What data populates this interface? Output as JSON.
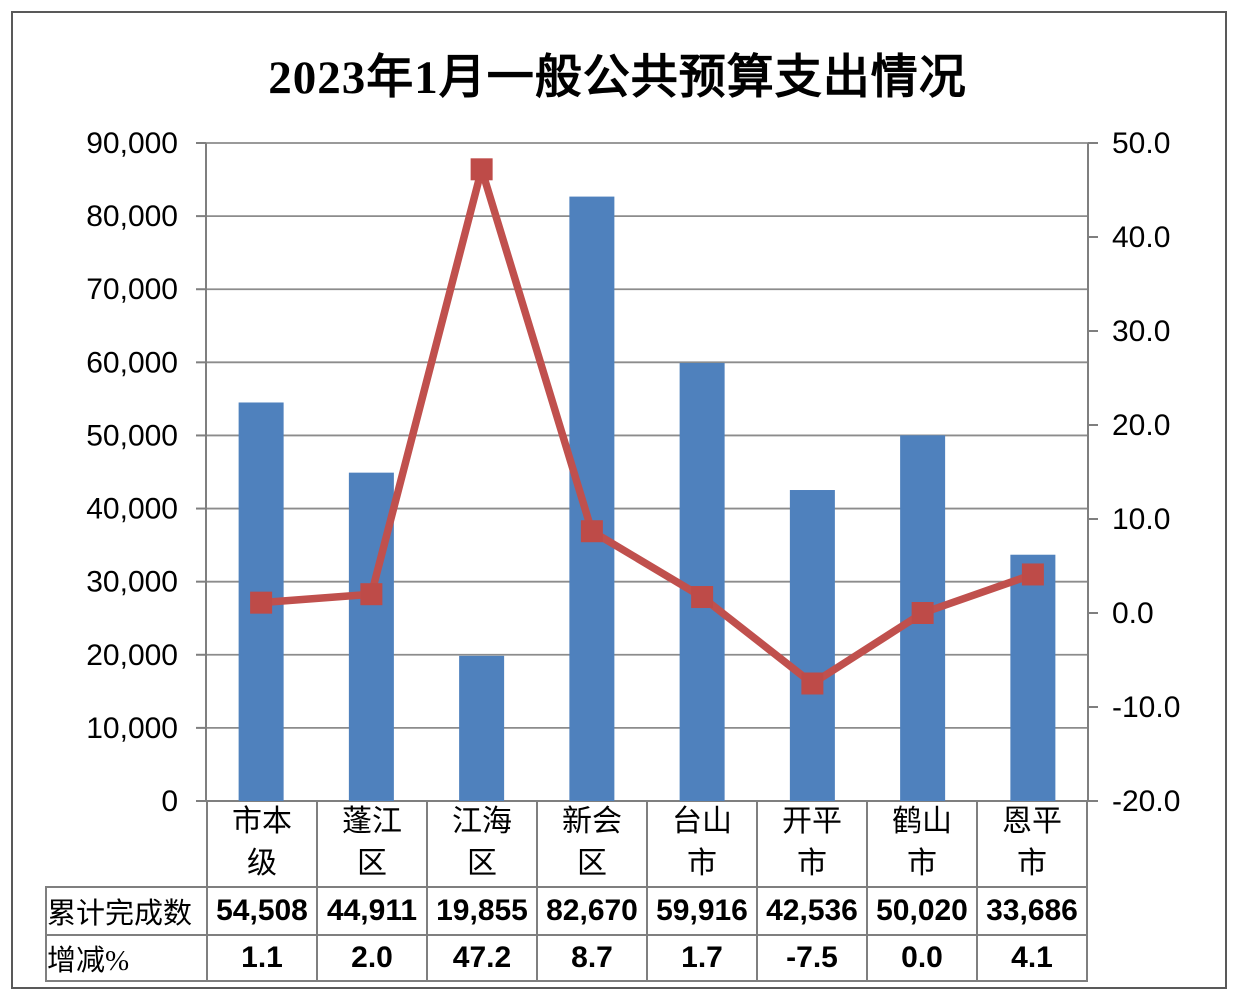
{
  "title": "2023年1月一般公共预算支出情况",
  "chart_data": {
    "type": "bar+line",
    "title": "2023年1月一般公共预算支出情况",
    "categories": [
      "市本级",
      "蓬江区",
      "江海区",
      "新会区",
      "台山市",
      "开平市",
      "鹤山市",
      "恩平市"
    ],
    "categories_wrapped": [
      "市本\n级",
      "蓬江\n区",
      "江海\n区",
      "新会\n区",
      "台山\n市",
      "开平\n市",
      "鹤山\n市",
      "恩平\n市"
    ],
    "series": [
      {
        "name": "累计完成数",
        "type": "bar",
        "axis": "left",
        "values": [
          54508,
          44911,
          19855,
          82670,
          59916,
          42536,
          50020,
          33686
        ]
      },
      {
        "name": "增减%",
        "type": "line",
        "axis": "right",
        "marker": "square",
        "values": [
          1.1,
          2.0,
          47.2,
          8.7,
          1.7,
          -7.5,
          0.0,
          4.1
        ]
      }
    ],
    "left_axis": {
      "min": 0,
      "max": 90000,
      "step": 10000,
      "tick_labels": [
        "0",
        "10,000",
        "20,000",
        "30,000",
        "40,000",
        "50,000",
        "60,000",
        "70,000",
        "80,000",
        "90,000"
      ]
    },
    "right_axis": {
      "min": -20,
      "max": 50,
      "step": 10,
      "tick_labels": [
        "-20.0",
        "-10.0",
        "0.0",
        "10.0",
        "20.0",
        "30.0",
        "40.0",
        "50.0"
      ]
    },
    "grid": true,
    "legend_position": "none"
  },
  "table": {
    "row_headers": [
      "累计完成数",
      "增减%"
    ],
    "rows": [
      [
        "54,508",
        "44,911",
        "19,855",
        "82,670",
        "59,916",
        "42,536",
        "50,020",
        "33,686"
      ],
      [
        "1.1",
        "2.0",
        "47.2",
        "8.7",
        "1.7",
        "-7.5",
        "0.0",
        "4.1"
      ]
    ]
  },
  "colors": {
    "bar": "#4F81BD",
    "line": "#C0504D",
    "marker": "#BE4B48",
    "grid": "#8C8C8C",
    "axis": "#7F7F7F",
    "table_border": "#7F7F7F",
    "frame_border": "#595959",
    "background": "#FFFFFF",
    "text": "#000000"
  }
}
